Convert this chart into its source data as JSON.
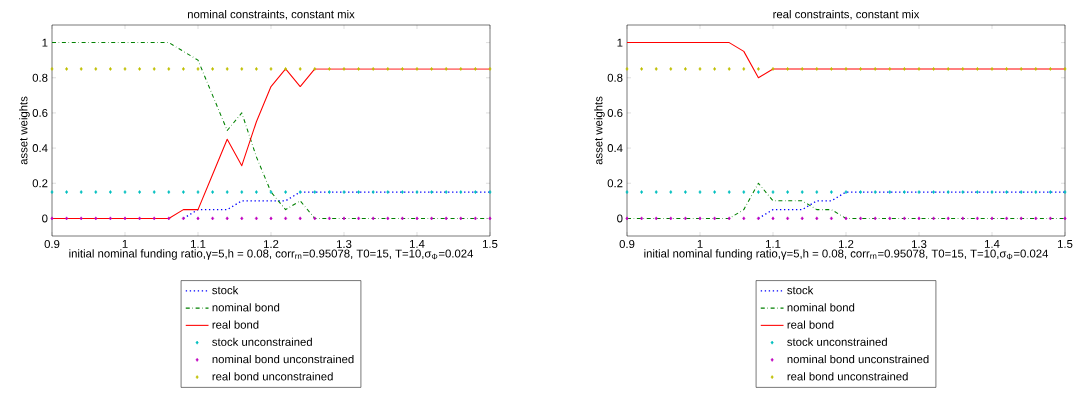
{
  "chart_data": [
    {
      "type": "line",
      "title": "nominal constraints, constant mix",
      "xlabel": "initial nominal funding ratio,γ=5,h = 0.08, corr$_{rn}$=0.95078, T0=15, T=10,σ$_{Φ}$=0.024",
      "ylabel": "asset weights",
      "x": [
        0.9,
        0.92,
        0.94,
        0.96,
        0.98,
        1.0,
        1.02,
        1.04,
        1.06,
        1.08,
        1.1,
        1.12,
        1.14,
        1.16,
        1.18,
        1.2,
        1.22,
        1.24,
        1.26,
        1.28,
        1.3,
        1.32,
        1.34,
        1.36,
        1.38,
        1.4,
        1.42,
        1.44,
        1.46,
        1.48,
        1.5
      ],
      "xlim": [
        0.9,
        1.5
      ],
      "xticks": [
        0.9,
        1,
        1.1,
        1.2,
        1.3,
        1.4,
        1.5
      ],
      "ylim": [
        -0.1,
        1.1
      ],
      "yticks": [
        0,
        0.2,
        0.4,
        0.6,
        0.8,
        1
      ],
      "grid": false,
      "legend": "bottom",
      "series": [
        {
          "name": "stock",
          "type": "line",
          "line_style": "dotted",
          "marker": "none",
          "color": "#0000ff",
          "values": [
            null,
            null,
            null,
            null,
            null,
            null,
            null,
            null,
            null,
            0,
            0.05,
            0.05,
            0.05,
            0.1,
            0.1,
            0.1,
            0.1,
            0.15,
            0.15,
            0.15,
            0.15,
            0.15,
            0.15,
            0.15,
            0.15,
            0.15,
            0.15,
            0.15,
            0.15,
            0.15,
            0.15
          ]
        },
        {
          "name": "nominal bond",
          "type": "line",
          "line_style": "dashdot",
          "marker": "none",
          "color": "#008000",
          "values": [
            1,
            1,
            1,
            1,
            1,
            1,
            1,
            1,
            1,
            0.95,
            0.9,
            0.7,
            0.5,
            0.6,
            0.35,
            0.15,
            0.05,
            0.1,
            0,
            0,
            0,
            0,
            0,
            0,
            0,
            0,
            0,
            0,
            0,
            0,
            0
          ]
        },
        {
          "name": "real bond",
          "type": "line",
          "line_style": "solid",
          "marker": "none",
          "color": "#ff0000",
          "values": [
            0,
            0,
            0,
            0,
            0,
            0,
            0,
            0,
            0,
            0.05,
            0.05,
            0.25,
            0.45,
            0.3,
            0.55,
            0.75,
            0.85,
            0.75,
            0.85,
            0.85,
            0.85,
            0.85,
            0.85,
            0.85,
            0.85,
            0.85,
            0.85,
            0.85,
            0.85,
            0.85,
            0.85
          ]
        },
        {
          "name": "stock unconstrained",
          "type": "scatter",
          "marker": "diamond",
          "color": "#00bfbf",
          "values": [
            0.15,
            0.15,
            0.15,
            0.15,
            0.15,
            0.15,
            0.15,
            0.15,
            0.15,
            0.15,
            0.15,
            0.15,
            0.15,
            0.15,
            0.15,
            0.15,
            0.15,
            0.15,
            0.15,
            0.15,
            0.15,
            0.15,
            0.15,
            0.15,
            0.15,
            0.15,
            0.15,
            0.15,
            0.15,
            0.15,
            0.15
          ]
        },
        {
          "name": "nominal bond unconstrained",
          "type": "scatter",
          "marker": "diamond",
          "color": "#bf00bf",
          "values": [
            0,
            0,
            0,
            0,
            0,
            0,
            0,
            0,
            0,
            0,
            0,
            0,
            0,
            0,
            0,
            0,
            0,
            0,
            0,
            0,
            0,
            0,
            0,
            0,
            0,
            0,
            0,
            0,
            0,
            0,
            0
          ]
        },
        {
          "name": "real bond unconstrained",
          "type": "scatter",
          "marker": "diamond",
          "color": "#bfbf00",
          "values": [
            0.85,
            0.85,
            0.85,
            0.85,
            0.85,
            0.85,
            0.85,
            0.85,
            0.85,
            0.85,
            0.85,
            0.85,
            0.85,
            0.85,
            0.85,
            0.85,
            0.85,
            0.85,
            0.85,
            0.85,
            0.85,
            0.85,
            0.85,
            0.85,
            0.85,
            0.85,
            0.85,
            0.85,
            0.85,
            0.85,
            0.85
          ]
        }
      ]
    },
    {
      "type": "line",
      "title": "real constraints, constant mix",
      "xlabel": "initial nominal funding ratio,γ=5,h = 0.08, corr$_{rn}$=0.95078, T0=15, T=10,σ$_{Φ}$=0.024",
      "ylabel": "asset weights",
      "x": [
        0.9,
        0.92,
        0.94,
        0.96,
        0.98,
        1.0,
        1.02,
        1.04,
        1.06,
        1.08,
        1.1,
        1.12,
        1.14,
        1.16,
        1.18,
        1.2,
        1.22,
        1.24,
        1.26,
        1.28,
        1.3,
        1.32,
        1.34,
        1.36,
        1.38,
        1.4,
        1.42,
        1.44,
        1.46,
        1.48,
        1.5
      ],
      "xlim": [
        0.9,
        1.5
      ],
      "xticks": [
        0.9,
        1,
        1.1,
        1.2,
        1.3,
        1.4,
        1.5
      ],
      "ylim": [
        -0.1,
        1.1
      ],
      "yticks": [
        0,
        0.2,
        0.4,
        0.6,
        0.8,
        1
      ],
      "grid": false,
      "legend": "bottom",
      "series": [
        {
          "name": "stock",
          "type": "line",
          "line_style": "dotted",
          "marker": "none",
          "color": "#0000ff",
          "values": [
            null,
            null,
            null,
            null,
            null,
            null,
            null,
            null,
            null,
            0,
            0.05,
            0.05,
            0.05,
            0.1,
            0.1,
            0.15,
            0.15,
            0.15,
            0.15,
            0.15,
            0.15,
            0.15,
            0.15,
            0.15,
            0.15,
            0.15,
            0.15,
            0.15,
            0.15,
            0.15,
            0.15
          ]
        },
        {
          "name": "nominal bond",
          "type": "line",
          "line_style": "dashdot",
          "marker": "none",
          "color": "#008000",
          "values": [
            0,
            0,
            0,
            0,
            0,
            0,
            0,
            0,
            0.05,
            0.2,
            0.1,
            0.1,
            0.1,
            0.05,
            0.05,
            0,
            0,
            0,
            0,
            0,
            0,
            0,
            0,
            0,
            0,
            0,
            0,
            0,
            0,
            0,
            0
          ]
        },
        {
          "name": "real bond",
          "type": "line",
          "line_style": "solid",
          "marker": "none",
          "color": "#ff0000",
          "values": [
            1,
            1,
            1,
            1,
            1,
            1,
            1,
            1,
            0.95,
            0.8,
            0.85,
            0.85,
            0.85,
            0.85,
            0.85,
            0.85,
            0.85,
            0.85,
            0.85,
            0.85,
            0.85,
            0.85,
            0.85,
            0.85,
            0.85,
            0.85,
            0.85,
            0.85,
            0.85,
            0.85,
            0.85
          ]
        },
        {
          "name": "stock unconstrained",
          "type": "scatter",
          "marker": "diamond",
          "color": "#00bfbf",
          "values": [
            0.15,
            0.15,
            0.15,
            0.15,
            0.15,
            0.15,
            0.15,
            0.15,
            0.15,
            0.15,
            0.15,
            0.15,
            0.15,
            0.15,
            0.15,
            0.15,
            0.15,
            0.15,
            0.15,
            0.15,
            0.15,
            0.15,
            0.15,
            0.15,
            0.15,
            0.15,
            0.15,
            0.15,
            0.15,
            0.15,
            0.15
          ]
        },
        {
          "name": "nominal bond unconstrained",
          "type": "scatter",
          "marker": "diamond",
          "color": "#bf00bf",
          "values": [
            0,
            0,
            0,
            0,
            0,
            0,
            0,
            0,
            0,
            0,
            0,
            0,
            0,
            0,
            0,
            0,
            0,
            0,
            0,
            0,
            0,
            0,
            0,
            0,
            0,
            0,
            0,
            0,
            0,
            0,
            0
          ]
        },
        {
          "name": "real bond unconstrained",
          "type": "scatter",
          "marker": "diamond",
          "color": "#bfbf00",
          "values": [
            0.85,
            0.85,
            0.85,
            0.85,
            0.85,
            0.85,
            0.85,
            0.85,
            0.85,
            0.85,
            0.85,
            0.85,
            0.85,
            0.85,
            0.85,
            0.85,
            0.85,
            0.85,
            0.85,
            0.85,
            0.85,
            0.85,
            0.85,
            0.85,
            0.85,
            0.85,
            0.85,
            0.85,
            0.85,
            0.85,
            0.85
          ]
        }
      ]
    }
  ]
}
